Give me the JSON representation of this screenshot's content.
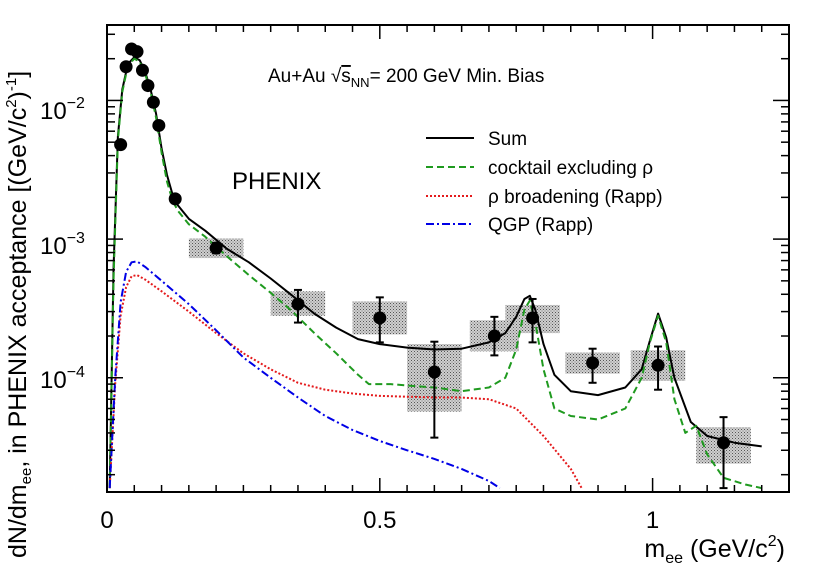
{
  "chart_data": {
    "type": "line",
    "experiment_label": "PHENIX",
    "system_label": {
      "prefix": "Au+Au ",
      "sqrt_symbol": "√",
      "s": "s",
      "subscript": "NN",
      "suffix": "= 200 GeV Min. Bias"
    },
    "xaxis": {
      "label_main": "m",
      "label_sub": "ee",
      "label_unit": " (GeV/c",
      "label_sup": "2",
      "label_close": ")",
      "range": [
        0,
        1.25
      ],
      "ticks": [
        {
          "value": 0,
          "label": "0"
        },
        {
          "value": 0.5,
          "label": "0.5"
        },
        {
          "value": 1,
          "label": "1"
        }
      ]
    },
    "yaxis": {
      "scale": "log",
      "label_pre": "dN/dm",
      "label_sub": "ee",
      "label_mid": ", in PHENIX acceptance [(GeV/c",
      "label_sup1": "2",
      "label_close": ")",
      "label_sup2": "-1",
      "label_end": "]",
      "range": [
        1.5e-05,
        0.035
      ],
      "ticks": [
        {
          "value": 0.0001,
          "base": "10",
          "exp": "−4"
        },
        {
          "value": 0.001,
          "base": "10",
          "exp": "−3"
        },
        {
          "value": 0.01,
          "base": "10",
          "exp": "−2"
        }
      ]
    },
    "legend": [
      {
        "label": "Sum",
        "color": "#000000",
        "dash": ""
      },
      {
        "label": "cocktail excluding ρ",
        "color": "#1f9a1f",
        "dash": "7,4"
      },
      {
        "label": "ρ broadening (Rapp)",
        "color": "#e41a1c",
        "dash": "2,2"
      },
      {
        "label": "QGP (Rapp)",
        "color": "#0000e6",
        "dash": "8,3,2,3"
      }
    ],
    "series": [
      {
        "name": "Sum",
        "color": "#000000",
        "dash": "",
        "width": 2,
        "points": [
          [
            0.005,
            1.6e-05
          ],
          [
            0.012,
            0.0006
          ],
          [
            0.02,
            0.0055
          ],
          [
            0.028,
            0.012
          ],
          [
            0.035,
            0.016
          ],
          [
            0.042,
            0.019
          ],
          [
            0.05,
            0.0205
          ],
          [
            0.06,
            0.0195
          ],
          [
            0.07,
            0.016
          ],
          [
            0.08,
            0.012
          ],
          [
            0.09,
            0.008
          ],
          [
            0.1,
            0.0045
          ],
          [
            0.11,
            0.0029
          ],
          [
            0.12,
            0.0021
          ],
          [
            0.13,
            0.00175
          ],
          [
            0.15,
            0.0014
          ],
          [
            0.18,
            0.00115
          ],
          [
            0.22,
            0.00085
          ],
          [
            0.26,
            0.00068
          ],
          [
            0.3,
            0.00052
          ],
          [
            0.34,
            0.00039
          ],
          [
            0.38,
            0.00029
          ],
          [
            0.42,
            0.00023
          ],
          [
            0.46,
            0.00019
          ],
          [
            0.5,
            0.000175
          ],
          [
            0.55,
            0.000165
          ],
          [
            0.6,
            0.00016
          ],
          [
            0.65,
            0.000162
          ],
          [
            0.7,
            0.00018
          ],
          [
            0.73,
            0.00021
          ],
          [
            0.75,
            0.000275
          ],
          [
            0.765,
            0.00037
          ],
          [
            0.775,
            0.00039
          ],
          [
            0.785,
            0.00031
          ],
          [
            0.8,
            0.000175
          ],
          [
            0.82,
            0.000105
          ],
          [
            0.85,
            8e-05
          ],
          [
            0.9,
            7.5e-05
          ],
          [
            0.95,
            8.5e-05
          ],
          [
            0.98,
            0.000115
          ],
          [
            0.995,
            0.000185
          ],
          [
            1.01,
            0.00029
          ],
          [
            1.025,
            0.000195
          ],
          [
            1.04,
            0.0001
          ],
          [
            1.07,
            4.8e-05
          ],
          [
            1.1,
            3.8e-05
          ],
          [
            1.15,
            3.4e-05
          ],
          [
            1.2,
            3.2e-05
          ]
        ]
      },
      {
        "name": "cocktail excluding ρ",
        "color": "#1f9a1f",
        "dash": "7,4",
        "width": 2,
        "points": [
          [
            0.005,
            1.6e-05
          ],
          [
            0.012,
            0.0005
          ],
          [
            0.02,
            0.0052
          ],
          [
            0.028,
            0.0115
          ],
          [
            0.035,
            0.0155
          ],
          [
            0.042,
            0.0185
          ],
          [
            0.05,
            0.02
          ],
          [
            0.06,
            0.019
          ],
          [
            0.07,
            0.0155
          ],
          [
            0.08,
            0.0115
          ],
          [
            0.09,
            0.0075
          ],
          [
            0.1,
            0.0042
          ],
          [
            0.11,
            0.0026
          ],
          [
            0.12,
            0.0019
          ],
          [
            0.13,
            0.0016
          ],
          [
            0.15,
            0.00128
          ],
          [
            0.18,
            0.00104
          ],
          [
            0.22,
            0.00075
          ],
          [
            0.26,
            0.00055
          ],
          [
            0.3,
            0.00041
          ],
          [
            0.34,
            0.0003
          ],
          [
            0.38,
            0.00021
          ],
          [
            0.42,
            0.00015
          ],
          [
            0.46,
            0.000105
          ],
          [
            0.48,
            9e-05
          ],
          [
            0.52,
            9e-05
          ],
          [
            0.55,
            8.8e-05
          ],
          [
            0.6,
            8.5e-05
          ],
          [
            0.65,
            8e-05
          ],
          [
            0.7,
            8.5e-05
          ],
          [
            0.73,
            0.0001
          ],
          [
            0.75,
            0.00016
          ],
          [
            0.765,
            0.00031
          ],
          [
            0.775,
            0.00036
          ],
          [
            0.785,
            0.00025
          ],
          [
            0.8,
            0.000115
          ],
          [
            0.82,
            6e-05
          ],
          [
            0.85,
            5.3e-05
          ],
          [
            0.9,
            5e-05
          ],
          [
            0.95,
            6e-05
          ],
          [
            0.98,
            0.0001
          ],
          [
            0.995,
            0.00018
          ],
          [
            1.01,
            0.00028
          ],
          [
            1.025,
            0.00018
          ],
          [
            1.04,
            7e-05
          ],
          [
            1.06,
            4e-05
          ],
          [
            1.08,
            4.5e-05
          ],
          [
            1.1,
            2.8e-05
          ],
          [
            1.13,
            1.9e-05
          ],
          [
            1.17,
            1.7e-05
          ],
          [
            1.2,
            1.6e-05
          ]
        ]
      },
      {
        "name": "ρ broadening (Rapp)",
        "color": "#e41a1c",
        "dash": "2,2",
        "width": 2,
        "points": [
          [
            0.005,
            1.6e-05
          ],
          [
            0.015,
            9e-05
          ],
          [
            0.025,
            0.00028
          ],
          [
            0.035,
            0.00045
          ],
          [
            0.045,
            0.00054
          ],
          [
            0.055,
            0.00055
          ],
          [
            0.07,
            0.00051
          ],
          [
            0.1,
            0.00042
          ],
          [
            0.15,
            0.0003
          ],
          [
            0.2,
            0.00021
          ],
          [
            0.25,
            0.00015
          ],
          [
            0.3,
            0.000115
          ],
          [
            0.35,
            9.2e-05
          ],
          [
            0.4,
            8.2e-05
          ],
          [
            0.45,
            7.7e-05
          ],
          [
            0.5,
            7.4e-05
          ],
          [
            0.55,
            7.3e-05
          ],
          [
            0.6,
            7.2e-05
          ],
          [
            0.65,
            7.2e-05
          ],
          [
            0.7,
            7e-05
          ],
          [
            0.75,
            6e-05
          ],
          [
            0.8,
            3.8e-05
          ],
          [
            0.85,
            2.2e-05
          ],
          [
            0.87,
            1.6e-05
          ]
        ]
      },
      {
        "name": "QGP (Rapp)",
        "color": "#0000e6",
        "dash": "8,3,2,3",
        "width": 2,
        "points": [
          [
            0.005,
            1.6e-05
          ],
          [
            0.015,
            0.0001
          ],
          [
            0.025,
            0.00035
          ],
          [
            0.035,
            0.00058
          ],
          [
            0.045,
            0.00068
          ],
          [
            0.055,
            0.00069
          ],
          [
            0.07,
            0.00063
          ],
          [
            0.1,
            0.0005
          ],
          [
            0.15,
            0.00034
          ],
          [
            0.2,
            0.00022
          ],
          [
            0.25,
            0.00014
          ],
          [
            0.3,
            0.0001
          ],
          [
            0.35,
            7.2e-05
          ],
          [
            0.4,
            5.3e-05
          ],
          [
            0.45,
            4.2e-05
          ],
          [
            0.5,
            3.5e-05
          ],
          [
            0.55,
            3e-05
          ],
          [
            0.6,
            2.6e-05
          ],
          [
            0.65,
            2.2e-05
          ],
          [
            0.7,
            1.8e-05
          ],
          [
            0.72,
            1.6e-05
          ]
        ]
      }
    ],
    "data_points": [
      {
        "x": 0.025,
        "y": 0.0048,
        "err_lo": 0,
        "err_hi": 0,
        "sys": false
      },
      {
        "x": 0.035,
        "y": 0.0175,
        "err_lo": 0,
        "err_hi": 0,
        "sys": false
      },
      {
        "x": 0.045,
        "y": 0.0235,
        "err_lo": 0,
        "err_hi": 0,
        "sys": false
      },
      {
        "x": 0.055,
        "y": 0.0225,
        "err_lo": 0,
        "err_hi": 0,
        "sys": false
      },
      {
        "x": 0.065,
        "y": 0.0165,
        "err_lo": 0,
        "err_hi": 0,
        "sys": false
      },
      {
        "x": 0.075,
        "y": 0.0128,
        "err_lo": 0,
        "err_hi": 0,
        "sys": false
      },
      {
        "x": 0.085,
        "y": 0.0097,
        "err_lo": 0,
        "err_hi": 0,
        "sys": false
      },
      {
        "x": 0.095,
        "y": 0.0066,
        "err_lo": 0,
        "err_hi": 0,
        "sys": false
      },
      {
        "x": 0.125,
        "y": 0.00195,
        "err_lo": 0,
        "err_hi": 0,
        "sys": false
      },
      {
        "x": 0.2,
        "y": 0.00086,
        "err_lo": 0.00079,
        "err_hi": 0.00094,
        "sys": true,
        "sys_w": 0.05,
        "sys_lo": 0.00073,
        "sys_hi": 0.00101
      },
      {
        "x": 0.35,
        "y": 0.00034,
        "err_lo": 0.00025,
        "err_hi": 0.00043,
        "sys": true,
        "sys_w": 0.05,
        "sys_lo": 0.00028,
        "sys_hi": 0.00042
      },
      {
        "x": 0.5,
        "y": 0.00027,
        "err_lo": 0.00018,
        "err_hi": 0.00038,
        "sys": true,
        "sys_w": 0.05,
        "sys_lo": 0.000205,
        "sys_hi": 0.000355
      },
      {
        "x": 0.6,
        "y": 0.00011,
        "err_lo": 3.7e-05,
        "err_hi": 0.000182,
        "sys": true,
        "sys_w": 0.05,
        "sys_lo": 5.7e-05,
        "sys_hi": 0.000175
      },
      {
        "x": 0.71,
        "y": 0.0002,
        "err_lo": 0.000145,
        "err_hi": 0.000275,
        "sys": true,
        "sys_w": 0.045,
        "sys_lo": 0.000155,
        "sys_hi": 0.00026
      },
      {
        "x": 0.78,
        "y": 0.00027,
        "err_lo": 0.00018,
        "err_hi": 0.00037,
        "sys": true,
        "sys_w": 0.05,
        "sys_lo": 0.00021,
        "sys_hi": 0.000335
      },
      {
        "x": 0.89,
        "y": 0.000128,
        "err_lo": 9.2e-05,
        "err_hi": 0.000162,
        "sys": true,
        "sys_w": 0.05,
        "sys_lo": 0.000107,
        "sys_hi": 0.000152
      },
      {
        "x": 1.01,
        "y": 0.000123,
        "err_lo": 8.2e-05,
        "err_hi": 0.000168,
        "sys": true,
        "sys_w": 0.05,
        "sys_lo": 9.5e-05,
        "sys_hi": 0.000158
      },
      {
        "x": 1.13,
        "y": 3.4e-05,
        "err_lo": 1.6e-05,
        "err_hi": 5.2e-05,
        "sys": true,
        "sys_w": 0.05,
        "sys_lo": 2.4e-05,
        "sys_hi": 4.4e-05
      }
    ]
  }
}
